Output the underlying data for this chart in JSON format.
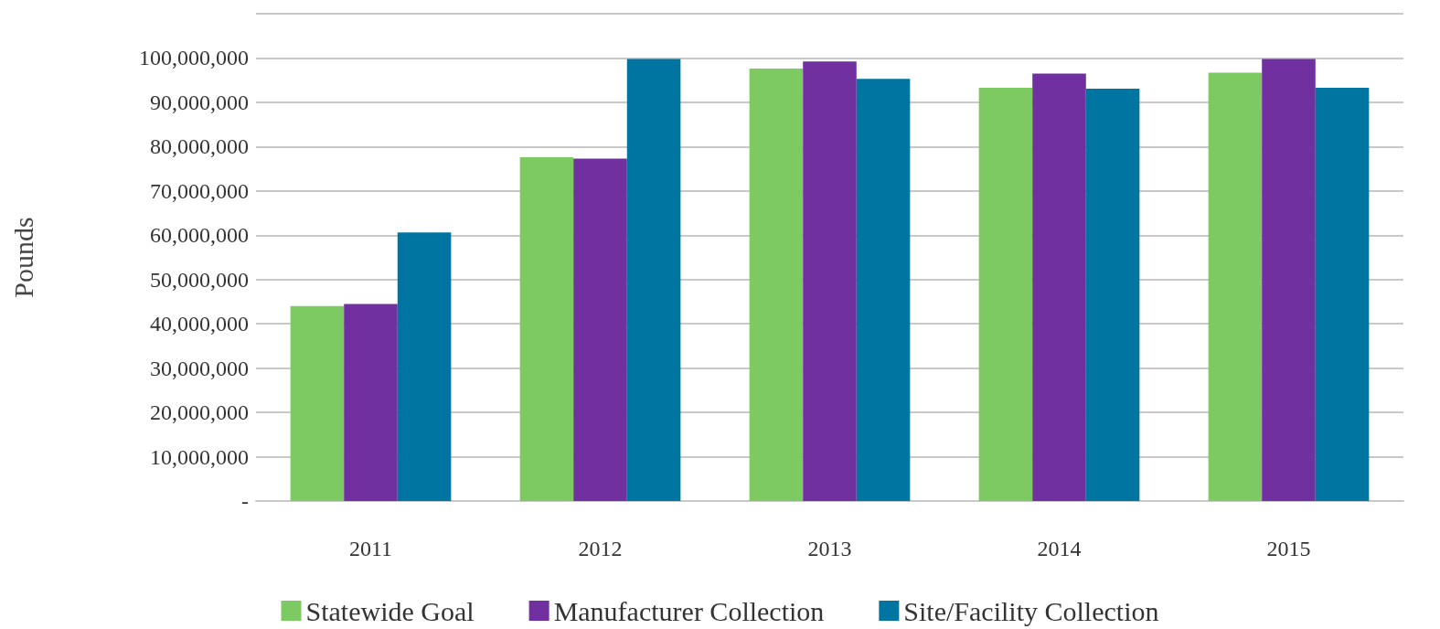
{
  "chart_data": {
    "type": "bar",
    "ylabel": "Pounds",
    "categories": [
      "2011",
      "2012",
      "2013",
      "2014",
      "2015"
    ],
    "series": [
      {
        "name": "Statewide Goal",
        "color": "#7dc962",
        "values": [
          44000000,
          77600000,
          97600000,
          93300000,
          96700000
        ]
      },
      {
        "name": "Manufacturer Collection",
        "color": "#7030a0",
        "values": [
          44500000,
          77300000,
          99200000,
          96500000,
          99800000
        ]
      },
      {
        "name": "Site/Facility Collection",
        "color": "#0075a2",
        "values": [
          60600000,
          99800000,
          95300000,
          93100000,
          93300000
        ]
      }
    ],
    "ylim": [
      0,
      110000000
    ],
    "yticks": [
      {
        "value": 0,
        "label": "-"
      },
      {
        "value": 10000000,
        "label": "10,000,000"
      },
      {
        "value": 20000000,
        "label": "20,000,000"
      },
      {
        "value": 30000000,
        "label": "30,000,000"
      },
      {
        "value": 40000000,
        "label": "40,000,000"
      },
      {
        "value": 50000000,
        "label": "50,000,000"
      },
      {
        "value": 60000000,
        "label": "60,000,000"
      },
      {
        "value": 70000000,
        "label": "70,000,000"
      },
      {
        "value": 80000000,
        "label": "80,000,000"
      },
      {
        "value": 90000000,
        "label": "90,000,000"
      },
      {
        "value": 100000000,
        "label": "100,000,000"
      },
      {
        "value": 110000000,
        "label": null
      }
    ],
    "grid": true,
    "legend": "bottom"
  }
}
